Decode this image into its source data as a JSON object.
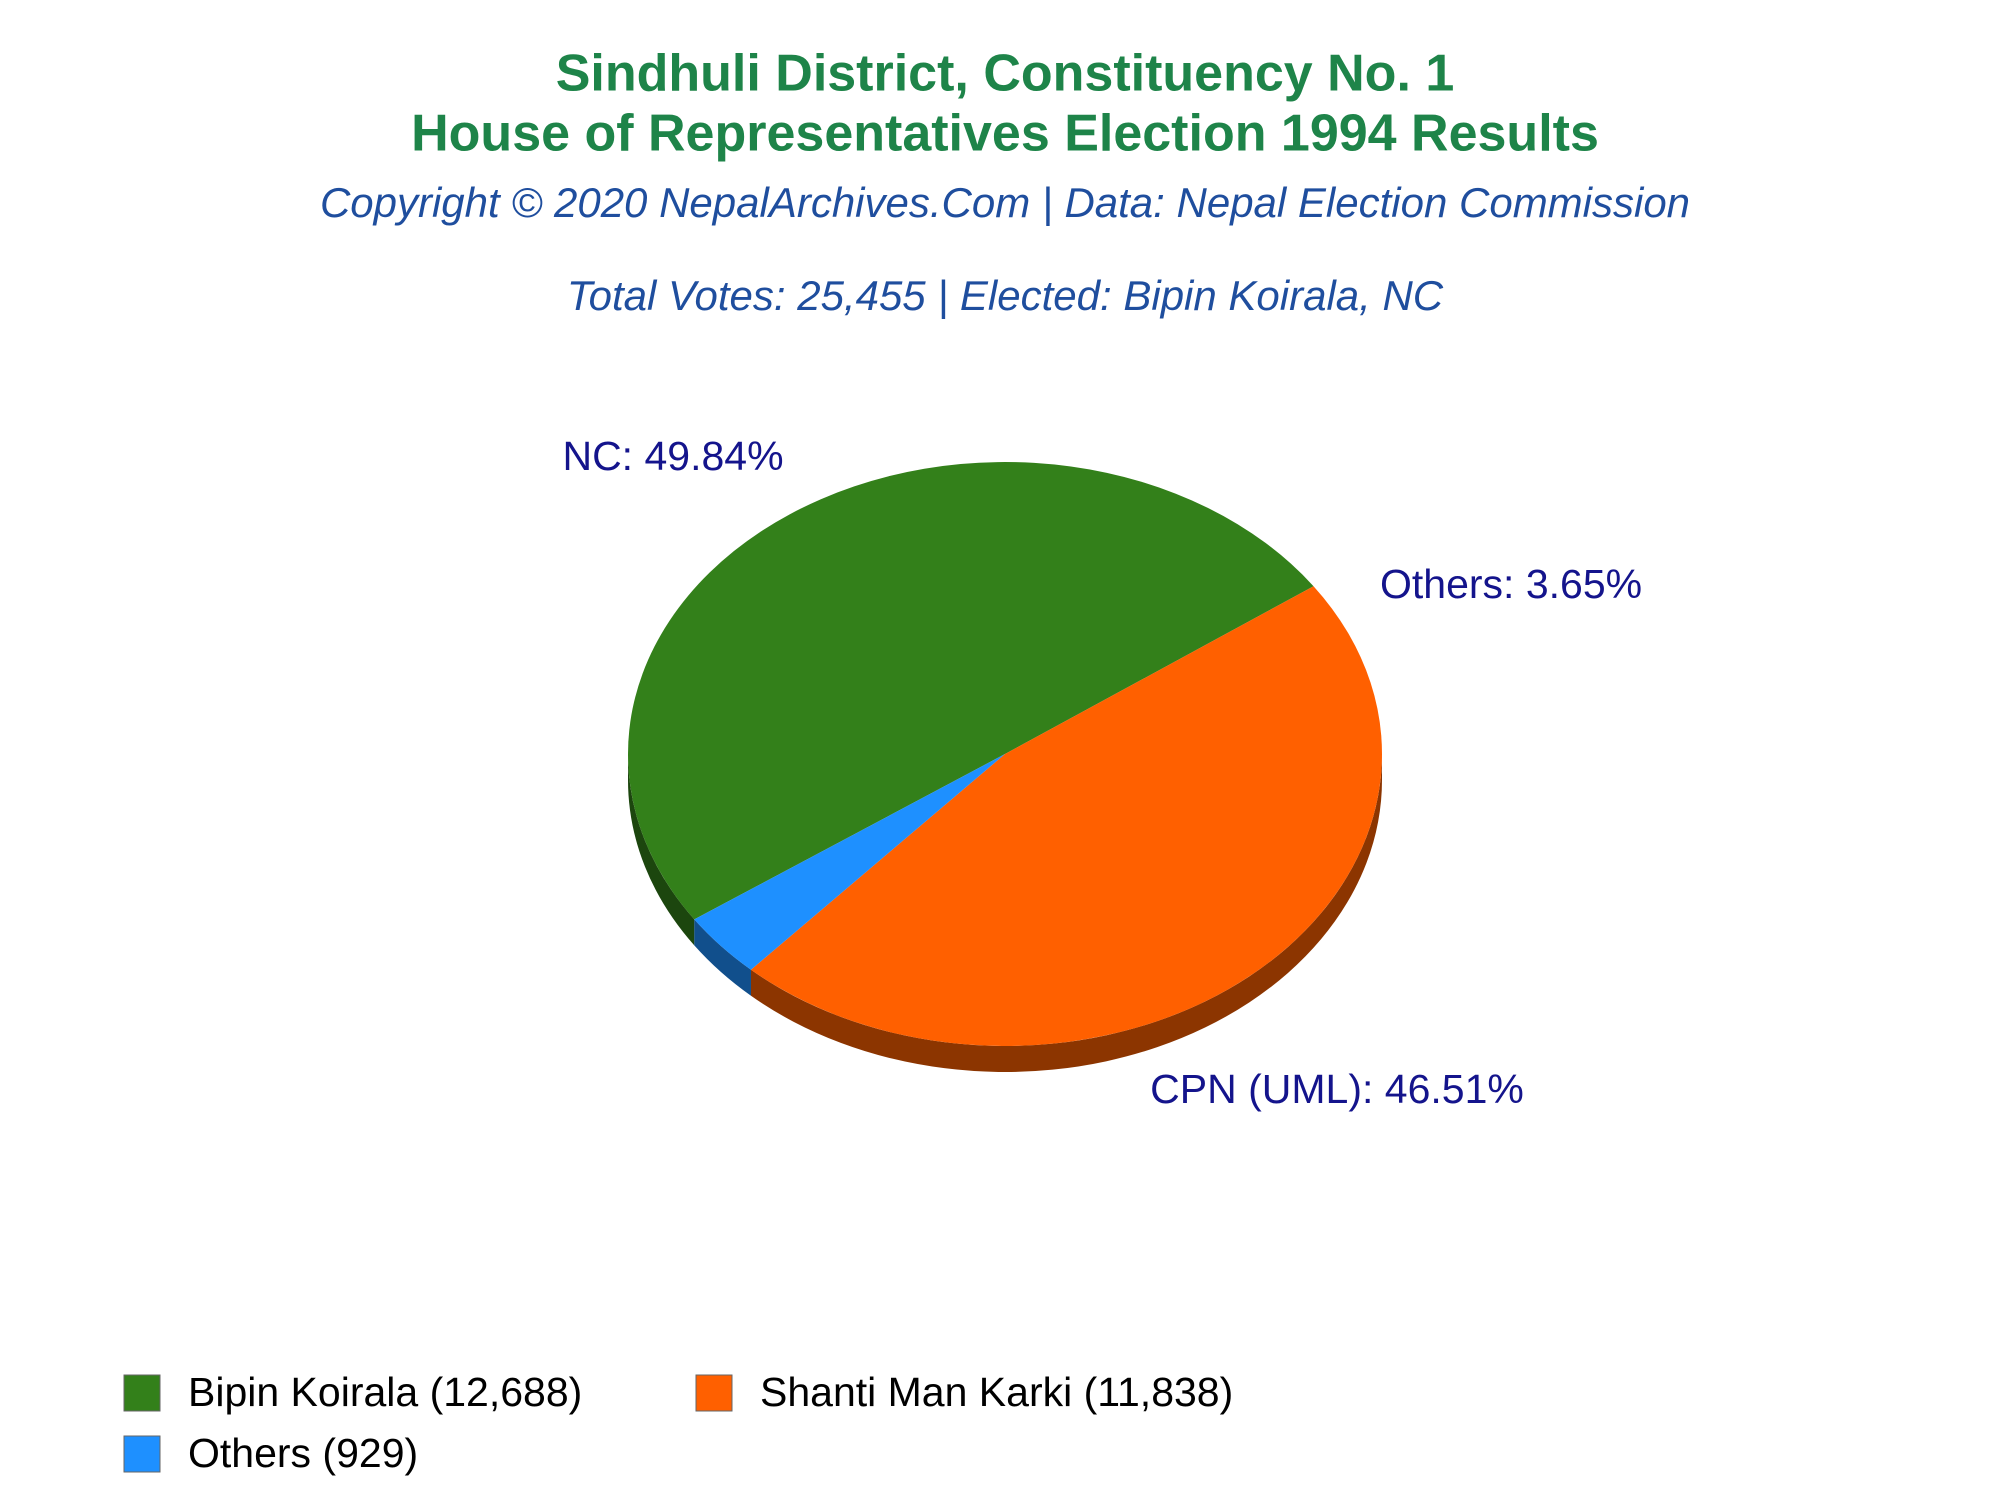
{
  "chart_data": {
    "type": "pie",
    "title": "Sindhuli District, Constituency No. 1",
    "title2": "House of Representatives Election 1994 Results",
    "subtitle": "Copyright © 2020 NepalArchives.Com | Data: Nepal Election Commission",
    "subtitle2": "Total Votes: 25,455 | Elected: Bipin Koirala, NC",
    "categories": [
      "Bipin Koirala (12,688)",
      "Shanti Man Karki (11,838)",
      "Others (929)"
    ],
    "values": [
      49.84,
      46.51,
      3.65
    ],
    "value_labels": [
      "NC: 49.84%",
      "CPN (UML): 46.51%",
      "Others: 3.65%"
    ],
    "colors": [
      "#33801a",
      "#ff6000",
      "#1e90ff"
    ]
  }
}
